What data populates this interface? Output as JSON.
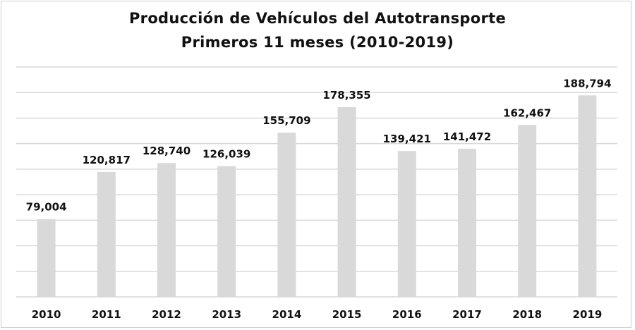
{
  "chart_data": {
    "type": "bar",
    "title": "Producción de Vehículos del Autotransporte",
    "subtitle": "Primeros 11 meses (2010-2019)",
    "categories": [
      "2010",
      "2011",
      "2012",
      "2013",
      "2014",
      "2015",
      "2016",
      "2017",
      "2018",
      "2019"
    ],
    "values": [
      79004,
      120817,
      128740,
      126039,
      155709,
      178355,
      139421,
      141472,
      162467,
      188794
    ],
    "data_labels": [
      "79,004",
      "120,817",
      "128,740",
      "126,039",
      "155,709",
      "178,355",
      "139,421",
      "141,472",
      "162,467",
      "188,794"
    ],
    "xlabel": "",
    "ylabel": "",
    "ylim": [
      10000,
      214000
    ],
    "grid": true,
    "legend": "none",
    "bar_color": "#d9d9d9",
    "grid_color": "#d9d9d9"
  }
}
